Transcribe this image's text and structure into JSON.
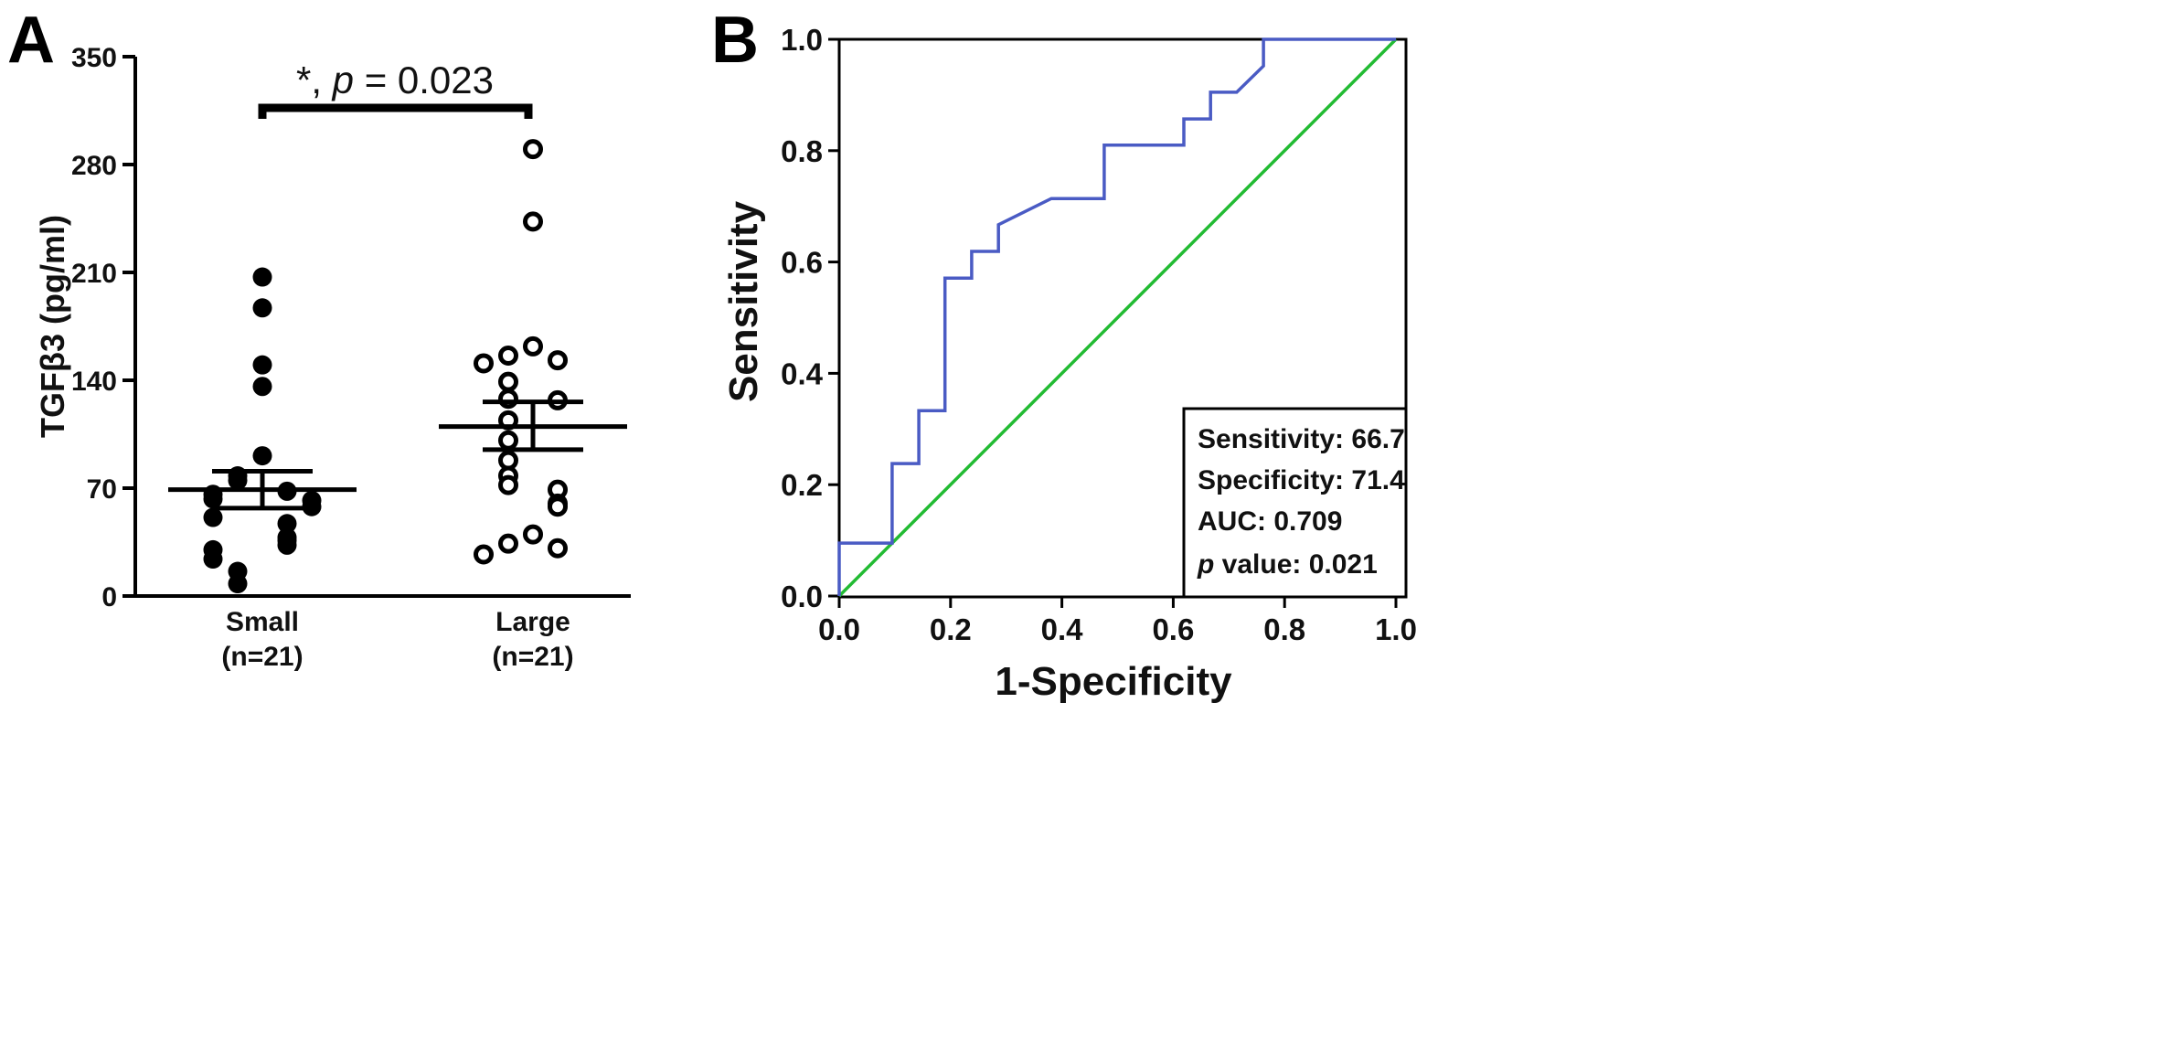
{
  "chart_data": [
    {
      "panel": "A",
      "type": "scatter",
      "ylabel": "TGFβ3 (pg/ml)",
      "ylim": [
        0,
        350
      ],
      "yticks": [
        0,
        70,
        140,
        210,
        280,
        350
      ],
      "groups": [
        {
          "name": "Small",
          "n_label": "(n=21)",
          "marker": "filled",
          "values": [
            207,
            187,
            150,
            136,
            91,
            78,
            75,
            68,
            66,
            63,
            62,
            58,
            51,
            47,
            38,
            36,
            33,
            30,
            24,
            16,
            8
          ],
          "mean": 69,
          "sem_upper": 81,
          "sem_lower": 57
        },
        {
          "name": "Large",
          "n_label": "(n=21)",
          "marker": "open",
          "values": [
            290,
            243,
            162,
            156,
            153,
            151,
            139,
            128,
            127,
            114,
            101,
            88,
            78,
            72,
            69,
            60,
            58,
            40,
            34,
            31,
            27
          ],
          "mean": 110,
          "sem_upper": 126,
          "sem_lower": 95
        }
      ],
      "annotation": {
        "prefix": "*, ",
        "p_italic": "p",
        "suffix": " = 0.023"
      }
    },
    {
      "panel": "B",
      "type": "line",
      "xlabel": "1-Specificity",
      "ylabel": "Sensitivity",
      "xlim": [
        0,
        1
      ],
      "ylim": [
        0,
        1
      ],
      "xticks": [
        "0.0",
        "0.2",
        "0.4",
        "0.6",
        "0.8",
        "1.0"
      ],
      "yticks": [
        "0.0",
        "0.2",
        "0.4",
        "0.6",
        "0.8",
        "1.0"
      ],
      "series": [
        {
          "name": "ROC curve",
          "color": "#4a5bc4",
          "points": [
            [
              0,
              0
            ],
            [
              0,
              0.095
            ],
            [
              0.095,
              0.095
            ],
            [
              0.095,
              0.238
            ],
            [
              0.143,
              0.238
            ],
            [
              0.143,
              0.333
            ],
            [
              0.19,
              0.333
            ],
            [
              0.19,
              0.571
            ],
            [
              0.238,
              0.571
            ],
            [
              0.238,
              0.619
            ],
            [
              0.286,
              0.619
            ],
            [
              0.286,
              0.667
            ],
            [
              0.381,
              0.714
            ],
            [
              0.476,
              0.714
            ],
            [
              0.476,
              0.81
            ],
            [
              0.619,
              0.81
            ],
            [
              0.619,
              0.857
            ],
            [
              0.667,
              0.857
            ],
            [
              0.667,
              0.905
            ],
            [
              0.714,
              0.905
            ],
            [
              0.762,
              0.952
            ],
            [
              0.762,
              1.0
            ],
            [
              1.0,
              1.0
            ]
          ]
        },
        {
          "name": "Reference line",
          "color": "#22bb33",
          "points": [
            [
              0,
              0
            ],
            [
              1,
              1
            ]
          ]
        }
      ],
      "stats": {
        "sensitivity": "Sensitivity: 66.7",
        "specificity": "Specificity: 71.4",
        "auc": "AUC: 0.709",
        "p_italic": "p",
        "p_rest": " value: 0.021"
      }
    }
  ]
}
